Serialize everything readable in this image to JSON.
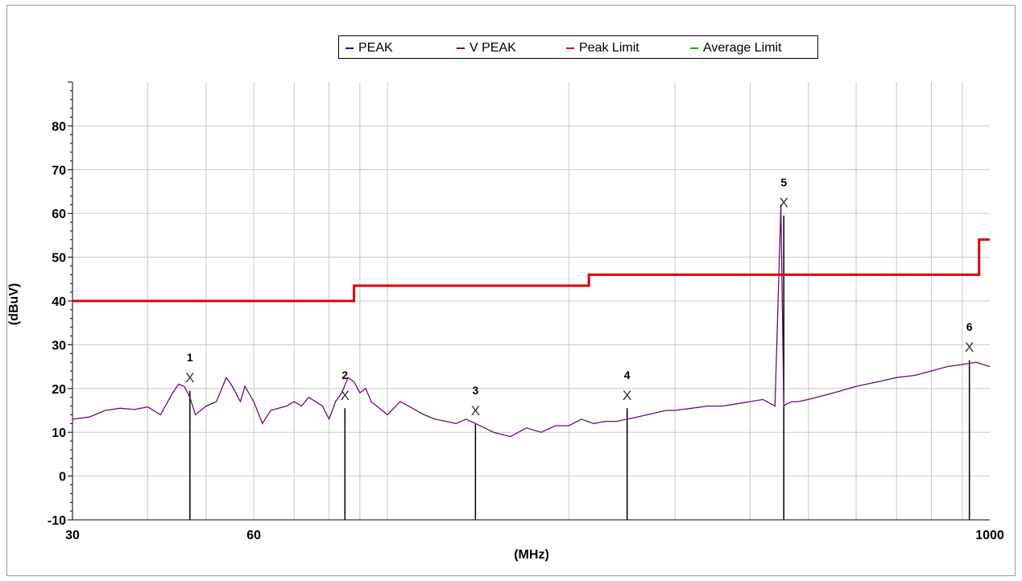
{
  "chart_data": {
    "type": "line",
    "title": "",
    "xlabel": "(MHz)",
    "ylabel": "(dBuV)",
    "x_scale": "log",
    "xlim": [
      30,
      1000
    ],
    "ylim": [
      -10,
      90
    ],
    "x_ticks_labeled": [
      "30",
      "60",
      "1000"
    ],
    "y_ticks": [
      -10,
      0,
      10,
      20,
      30,
      40,
      50,
      60,
      70,
      80
    ],
    "grid": true,
    "legend_position": "top-center",
    "legend": [
      {
        "label": "PEAK",
        "color": "#1a1a8c"
      },
      {
        "label": "V PEAK",
        "color": "#6a0a7a"
      },
      {
        "label": "Peak Limit",
        "color": "#dd0000"
      },
      {
        "label": "Average Limit",
        "color": "#00bb00"
      }
    ],
    "series": [
      {
        "name": "V PEAK",
        "color": "#6a0a7a",
        "x": [
          30,
          32,
          34,
          36,
          38,
          40,
          42,
          44,
          45,
          46,
          47,
          48,
          50,
          52,
          54,
          55,
          57,
          58,
          60,
          62,
          64,
          66,
          68,
          70,
          72,
          74,
          76,
          78,
          80,
          82,
          84,
          86,
          88,
          90,
          92,
          94,
          96,
          100,
          105,
          110,
          115,
          120,
          125,
          130,
          135,
          140,
          145,
          150,
          160,
          170,
          180,
          190,
          200,
          210,
          220,
          230,
          240,
          250,
          260,
          270,
          280,
          290,
          300,
          320,
          340,
          360,
          380,
          400,
          420,
          440,
          450,
          455,
          460,
          470,
          480,
          500,
          550,
          600,
          650,
          700,
          750,
          800,
          850,
          900,
          950,
          1000
        ],
        "values": [
          13,
          13.5,
          15,
          15.5,
          15.2,
          15.8,
          14,
          19,
          21,
          20.5,
          18,
          14,
          16,
          17,
          22.5,
          21,
          17,
          20.5,
          17,
          12,
          15,
          15.5,
          16,
          17,
          16,
          18,
          17,
          16,
          13,
          17,
          19,
          22.5,
          21.5,
          19,
          20,
          17,
          16,
          14,
          17,
          15.5,
          14,
          13,
          12.5,
          12,
          13,
          12,
          11,
          10,
          9,
          11,
          10,
          11.5,
          11.5,
          13,
          12,
          12.5,
          12.5,
          13,
          13.5,
          14,
          14.5,
          15,
          15,
          15.5,
          16,
          16,
          16.5,
          17,
          17.5,
          16,
          62,
          16,
          16.5,
          17,
          17,
          17.5,
          19,
          20.5,
          21.5,
          22.5,
          23,
          24,
          25,
          25.5,
          26,
          25
        ]
      },
      {
        "name": "Peak Limit",
        "color": "#dd0000",
        "x": [
          30,
          88,
          88,
          216,
          216,
          960,
          960,
          1000
        ],
        "values": [
          40,
          40,
          43.5,
          43.5,
          46,
          46,
          54,
          54
        ]
      }
    ],
    "markers": [
      {
        "label": "1",
        "x": 47,
        "value": 22.5
      },
      {
        "label": "2",
        "x": 85,
        "value": 18.5
      },
      {
        "label": "3",
        "x": 140,
        "value": 15
      },
      {
        "label": "4",
        "x": 250,
        "value": 18.5
      },
      {
        "label": "5",
        "x": 455,
        "value": 62.5
      },
      {
        "label": "6",
        "x": 925,
        "value": 29.5
      }
    ]
  }
}
